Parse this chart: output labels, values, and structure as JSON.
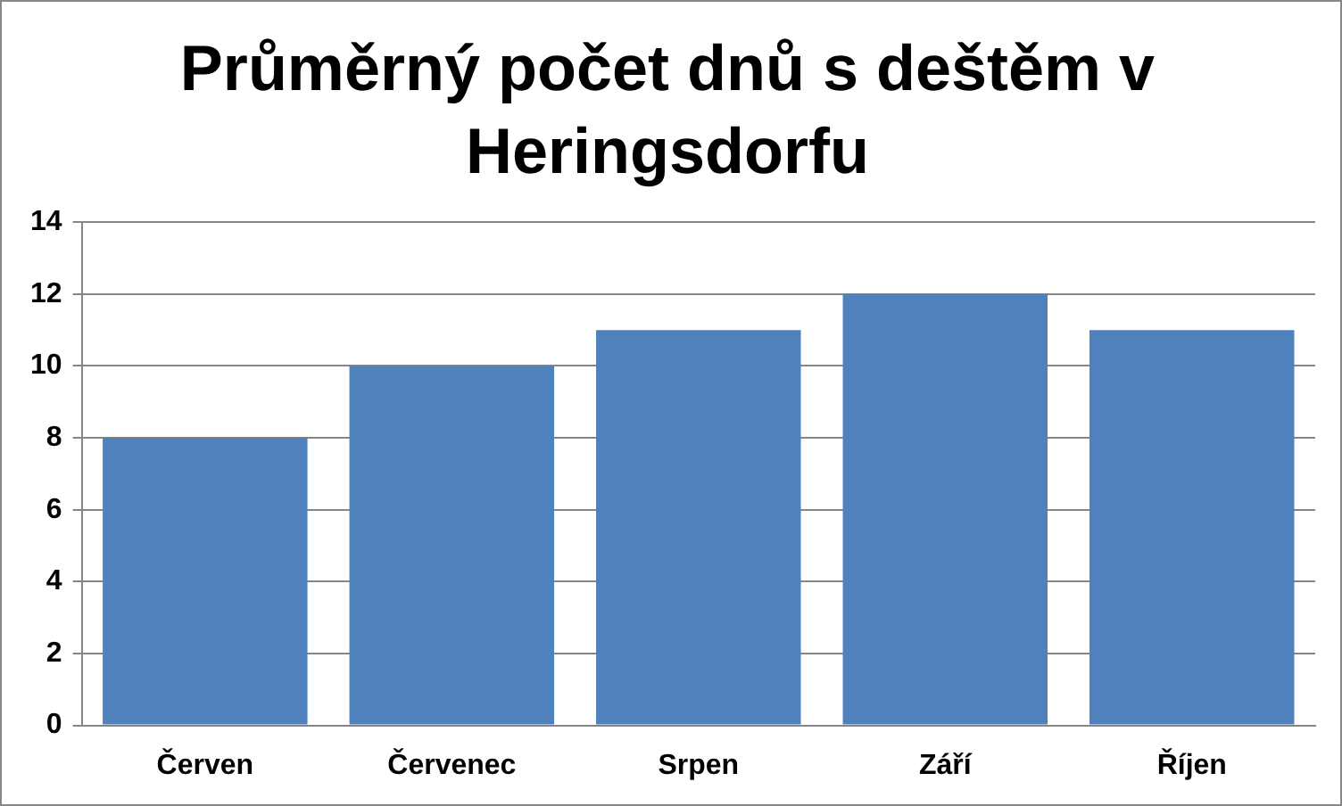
{
  "chart_data": {
    "type": "bar",
    "title": "Průměrný počet dnů s deštěm v Heringsdorfu",
    "categories": [
      "Červen",
      "Červenec",
      "Srpen",
      "Září",
      "Říjen"
    ],
    "values": [
      8,
      10,
      11,
      12,
      11
    ],
    "color": "#4f81bd",
    "ylim": [
      0,
      14
    ],
    "yticks": [
      0,
      2,
      4,
      6,
      8,
      10,
      12,
      14
    ],
    "grid": "y",
    "legend": false
  }
}
